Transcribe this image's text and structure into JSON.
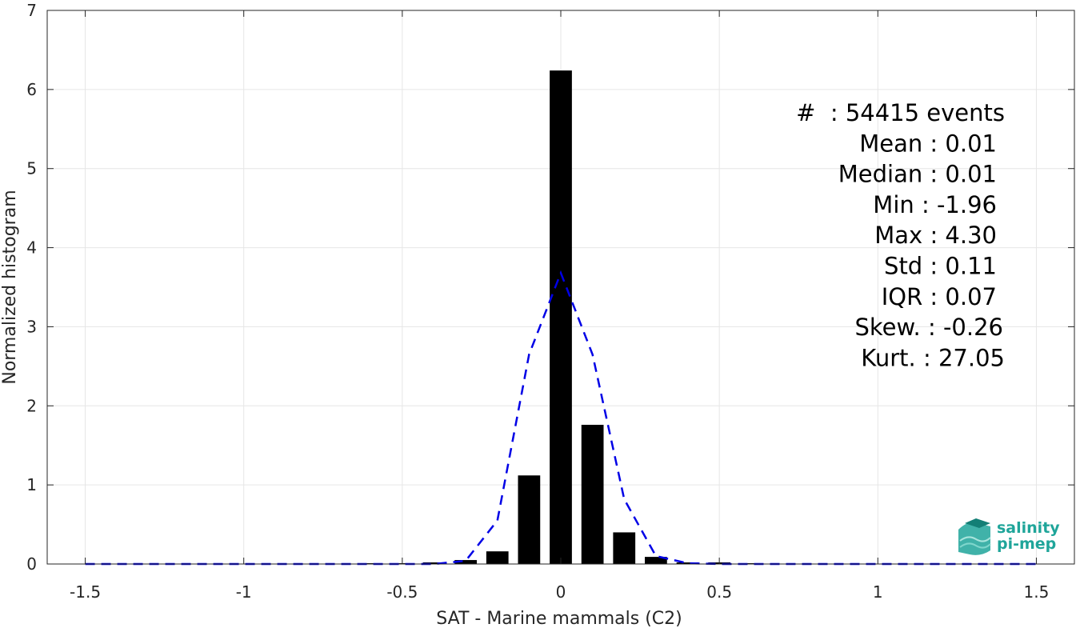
{
  "chart_data": {
    "type": "bar",
    "xlabel": "SAT - Marine mammals (C2)",
    "ylabel": "Normalized histogram",
    "xlim": [
      -1.62,
      1.62
    ],
    "ylim": [
      0,
      7
    ],
    "xticks": [
      -1.5,
      -1,
      -0.5,
      0,
      0.5,
      1,
      1.5
    ],
    "xtick_labels": [
      "-1.5",
      "-1",
      "-0.5",
      "0",
      "0.5",
      "1",
      "1.5"
    ],
    "yticks": [
      0,
      1,
      2,
      3,
      4,
      5,
      6,
      7
    ],
    "ytick_labels": [
      "0",
      "1",
      "2",
      "3",
      "4",
      "5",
      "6",
      "7"
    ],
    "grid": true,
    "bar_color": "#000000",
    "bar_width": 0.07,
    "bars": {
      "x": [
        -0.6,
        -0.5,
        -0.4,
        -0.3,
        -0.2,
        -0.1,
        0.0,
        0.1,
        0.2,
        0.3,
        0.4,
        0.5,
        0.6
      ],
      "y": [
        0.01,
        0.01,
        0.02,
        0.05,
        0.16,
        1.12,
        6.24,
        1.76,
        0.4,
        0.09,
        0.02,
        0.02,
        0.01
      ]
    },
    "fit_line": {
      "color": "#0000e6",
      "style": "dashed",
      "x": [
        -1.5,
        -1.4,
        -1.3,
        -1.2,
        -1.1,
        -1.0,
        -0.9,
        -0.8,
        -0.7,
        -0.6,
        -0.5,
        -0.4,
        -0.3,
        -0.2,
        -0.1,
        0.0,
        0.1,
        0.2,
        0.3,
        0.4,
        0.5,
        0.6,
        0.7,
        0.8,
        0.9,
        1.0,
        1.1,
        1.2,
        1.3,
        1.4,
        1.5
      ],
      "y": [
        0,
        0,
        0,
        0,
        0,
        0,
        0,
        0,
        0,
        0,
        0,
        0,
        0.04,
        0.55,
        2.65,
        3.68,
        2.65,
        0.82,
        0.1,
        0.01,
        0,
        0,
        0,
        0,
        0,
        0,
        0,
        0,
        0,
        0,
        0
      ]
    },
    "annotations": [
      "#  : 54415 events",
      "Mean : 0.01",
      "Median : 0.01",
      "Min : -1.96",
      "Max : 4.30",
      "Std : 0.11",
      "IQR : 0.07",
      "Skew. : -0.26",
      "Kurt. : 27.05"
    ]
  },
  "logo": {
    "line1": "salinity",
    "line2": "pi-mep",
    "color": "#1fa59a"
  }
}
